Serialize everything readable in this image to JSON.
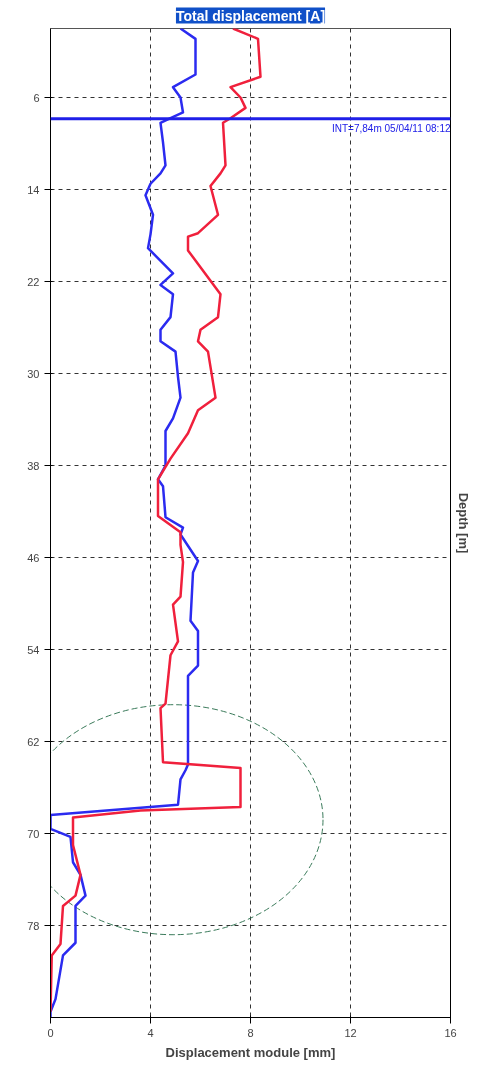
{
  "chart_data": {
    "type": "line",
    "title": "Total displacement [A]",
    "xlabel": "Displacement module [mm]",
    "ylabel": "Depth [m]",
    "xlim": [
      0,
      16
    ],
    "xticks": [
      0,
      4,
      8,
      12,
      16
    ],
    "ylim": [
      86,
      0
    ],
    "yticks": [
      6,
      14,
      22,
      30,
      38,
      46,
      54,
      62,
      70,
      78
    ],
    "grid": true,
    "line_style": "solid",
    "ref_lines": [
      {
        "axis": "y",
        "value": 7.84,
        "label": "INT=7,84m 05/04/11 08:12",
        "color": "#2020e8"
      }
    ],
    "series": [
      {
        "color": "#2b2bf0",
        "x": [
          5.2,
          5.8,
          5.8,
          4.9,
          5.2,
          5.3,
          4.8,
          4.4,
          4.5,
          4.6,
          4.4,
          4.0,
          3.8,
          4.1,
          4.0,
          3.9,
          4.9,
          4.4,
          4.9,
          4.8,
          4.4,
          4.4,
          5.0,
          5.1,
          5.2,
          4.9,
          4.6,
          4.6,
          4.3,
          4.5,
          4.6,
          5.3,
          5.2,
          5.9,
          5.7,
          5.6,
          5.9,
          5.9,
          5.5,
          5.5,
          5.4,
          5.2,
          5.1,
          0.0,
          0.0,
          0.8,
          0.9,
          1.2,
          1.4,
          1.0,
          1.0,
          0.5,
          0.2,
          0.0,
          0.0
        ],
        "values": [
          0,
          0.9,
          4.0,
          5.1,
          6.0,
          7.3,
          7.8,
          8.2,
          9.9,
          11.9,
          12.6,
          13.5,
          14.5,
          16.2,
          17.9,
          19.1,
          21.3,
          22.3,
          23.1,
          25.1,
          26.2,
          27.2,
          28.1,
          30.3,
          32.1,
          33.9,
          35.0,
          38.0,
          39.2,
          39.8,
          42.5,
          43.4,
          44.0,
          46.3,
          47.3,
          51.5,
          52.4,
          55.4,
          56.3,
          64.0,
          64.5,
          65.3,
          67.5,
          68.4,
          69.6,
          70.3,
          72.5,
          73.6,
          75.4,
          76.3,
          79.5,
          80.6,
          84.4,
          85.5,
          86
        ]
      },
      {
        "color": "#f0203c",
        "x": [
          7.3,
          8.3,
          8.4,
          7.2,
          7.6,
          7.8,
          7.2,
          6.9,
          7.0,
          6.8,
          6.4,
          6.7,
          5.9,
          5.5,
          5.5,
          6.8,
          6.7,
          6.0,
          5.9,
          6.3,
          6.6,
          5.9,
          5.5,
          4.8,
          4.3,
          4.3,
          5.2,
          5.2,
          5.3,
          5.2,
          4.9,
          5.1,
          4.8,
          4.6,
          4.4,
          4.5,
          7.6,
          7.6,
          3.6,
          0.9,
          0.9,
          0.9,
          1.2,
          1.0,
          0.5,
          0.4,
          0.05,
          0.0
        ],
        "values": [
          0,
          0.9,
          4.2,
          5.1,
          6.0,
          6.9,
          7.8,
          8.2,
          11.9,
          12.6,
          13.7,
          16.2,
          17.8,
          18.1,
          19.3,
          23.1,
          25.1,
          26.2,
          27.2,
          28.1,
          32.1,
          33.2,
          35.2,
          37.4,
          39.2,
          42.4,
          43.8,
          44.9,
          46.4,
          49.4,
          50.1,
          53.3,
          54.5,
          58.7,
          59.1,
          63.8,
          64.3,
          67.7,
          68.0,
          68.6,
          69.8,
          71.0,
          73.6,
          75.4,
          76.3,
          79.6,
          80.6,
          85.5
        ]
      }
    ]
  }
}
